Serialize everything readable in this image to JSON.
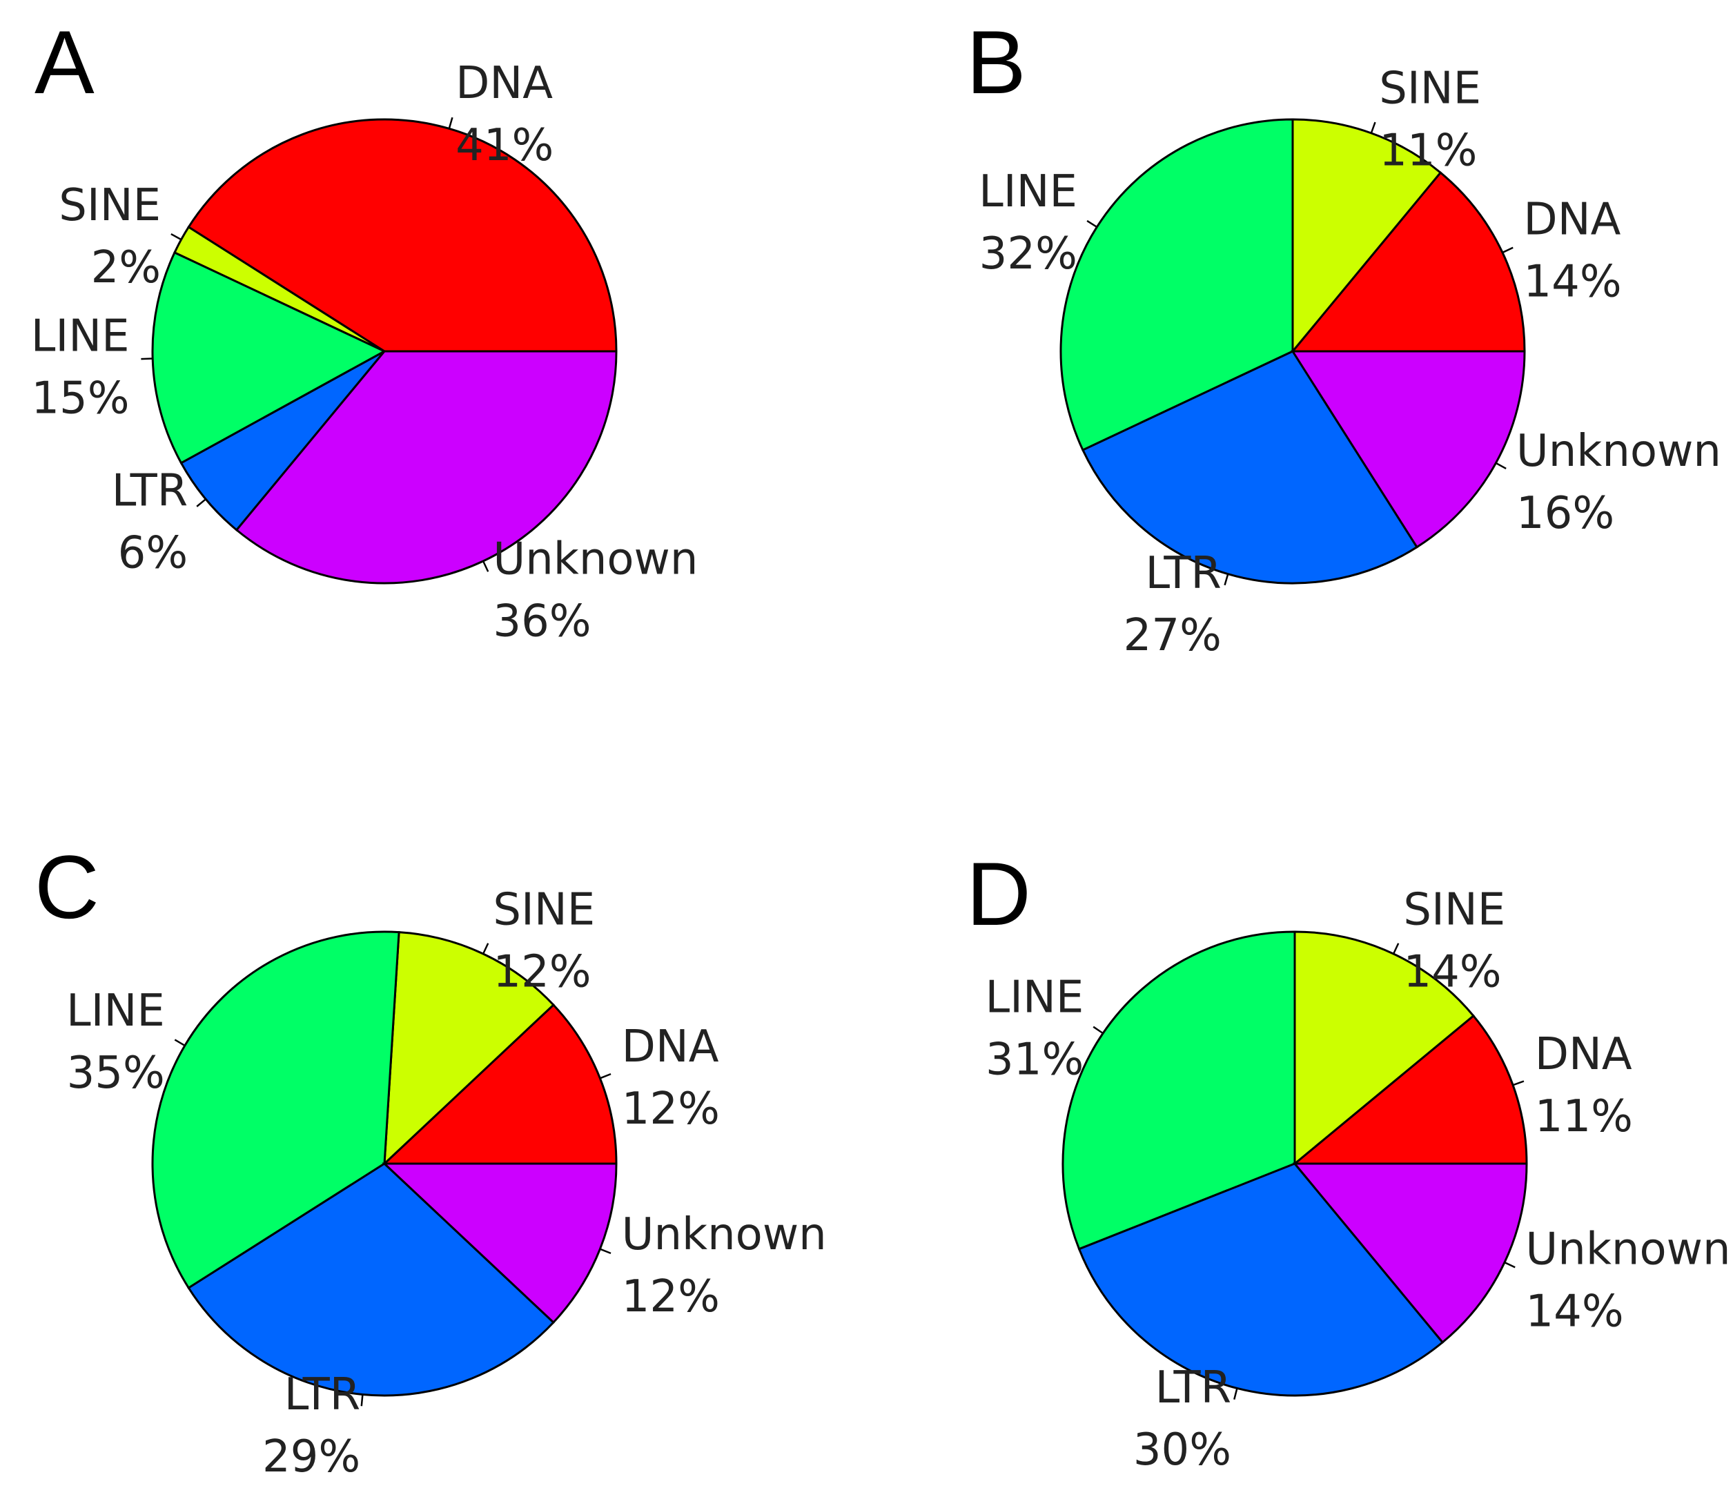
{
  "chart_data": [
    {
      "type": "pie",
      "title": "A",
      "categories": [
        "DNA",
        "SINE",
        "LINE",
        "LTR",
        "Unknown"
      ],
      "values": [
        41,
        2,
        15,
        6,
        36
      ],
      "value_labels": [
        "41%",
        "2%",
        "15%",
        "6%",
        "36%"
      ],
      "colors": [
        "#ff0000",
        "#ccff00",
        "#00ff66",
        "#0066ff",
        "#cc00ff"
      ]
    },
    {
      "type": "pie",
      "title": "B",
      "categories": [
        "DNA",
        "SINE",
        "LINE",
        "LTR",
        "Unknown"
      ],
      "values": [
        14,
        11,
        32,
        27,
        16
      ],
      "value_labels": [
        "14%",
        "11%",
        "32%",
        "27%",
        "16%"
      ],
      "colors": [
        "#ff0000",
        "#ccff00",
        "#00ff66",
        "#0066ff",
        "#cc00ff"
      ]
    },
    {
      "type": "pie",
      "title": "C",
      "categories": [
        "DNA",
        "SINE",
        "LINE",
        "LTR",
        "Unknown"
      ],
      "values": [
        12,
        12,
        35,
        29,
        12
      ],
      "value_labels": [
        "12%",
        "12%",
        "35%",
        "29%",
        "12%"
      ],
      "colors": [
        "#ff0000",
        "#ccff00",
        "#00ff66",
        "#0066ff",
        "#cc00ff"
      ]
    },
    {
      "type": "pie",
      "title": "D",
      "categories": [
        "DNA",
        "SINE",
        "LINE",
        "LTR",
        "Unknown"
      ],
      "values": [
        11,
        14,
        31,
        30,
        14
      ],
      "value_labels": [
        "11%",
        "14%",
        "31%",
        "30%",
        "14%"
      ],
      "colors": [
        "#ff0000",
        "#ccff00",
        "#00ff66",
        "#0066ff",
        "#cc00ff"
      ]
    }
  ]
}
